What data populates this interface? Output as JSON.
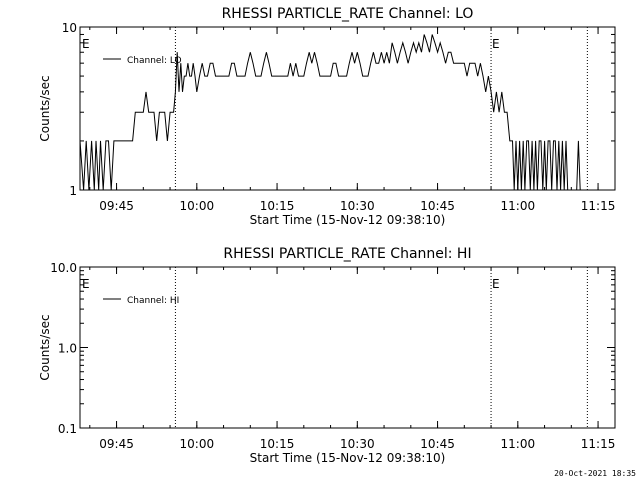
{
  "footer": {
    "timestamp": "20-Oct-2021 18:35"
  },
  "chart_data": [
    {
      "type": "line",
      "title": "RHESSI PARTICLE_RATE Channel: LO",
      "xlabel": "Start Time (15-Nov-12 09:38:10)",
      "ylabel": "Counts/sec",
      "xscale": "time",
      "xlim": [
        "09:38:10",
        "11:18:10"
      ],
      "yscale": "log",
      "ylim": [
        1,
        10
      ],
      "yticks": [
        1,
        10
      ],
      "ytick_labels": [
        "1",
        "10"
      ],
      "xticks": [
        "09:45",
        "10:00",
        "10:15",
        "10:30",
        "10:45",
        "11:00",
        "11:15"
      ],
      "xtick_labels": [
        "09:45",
        "10:00",
        "10:15",
        "10:30",
        "10:45",
        "11:00",
        "11:15"
      ],
      "legend": {
        "position": "top-left",
        "entries": [
          "Channel: LO"
        ]
      },
      "markers": [
        {
          "time": "09:56:00",
          "label": ""
        },
        {
          "time": "10:55:00",
          "label": "E"
        },
        {
          "time": "11:13:00",
          "label": ""
        }
      ],
      "edge_label": "E",
      "series": [
        {
          "name": "Channel: LO",
          "points": [
            [
              "09:38:10",
              2
            ],
            [
              "09:38:50",
              1
            ],
            [
              "09:39:20",
              2
            ],
            [
              "09:39:50",
              1
            ],
            [
              "09:40:20",
              2
            ],
            [
              "09:40:50",
              1
            ],
            [
              "09:41:10",
              2
            ],
            [
              "09:41:40",
              1
            ],
            [
              "09:42:00",
              2
            ],
            [
              "09:42:30",
              1
            ],
            [
              "09:43:00",
              2
            ],
            [
              "09:43:30",
              2
            ],
            [
              "09:44:00",
              1
            ],
            [
              "09:44:30",
              2
            ],
            [
              "09:45:00",
              2
            ],
            [
              "09:48:00",
              2
            ],
            [
              "09:48:30",
              3
            ],
            [
              "09:50:00",
              3
            ],
            [
              "09:50:30",
              4
            ],
            [
              "09:51:00",
              3
            ],
            [
              "09:52:00",
              3
            ],
            [
              "09:52:30",
              2
            ],
            [
              "09:53:00",
              3
            ],
            [
              "09:54:00",
              3
            ],
            [
              "09:54:30",
              2
            ],
            [
              "09:55:00",
              3
            ],
            [
              "09:55:40",
              3
            ],
            [
              "09:56:00",
              4
            ],
            [
              "09:56:20",
              7
            ],
            [
              "09:56:40",
              4
            ],
            [
              "09:57:00",
              6
            ],
            [
              "09:57:20",
              4
            ],
            [
              "09:57:40",
              5
            ],
            [
              "09:58:00",
              5
            ],
            [
              "09:58:20",
              6
            ],
            [
              "09:58:40",
              5
            ],
            [
              "09:59:00",
              5
            ],
            [
              "09:59:20",
              6
            ],
            [
              "09:59:40",
              5
            ],
            [
              "10:00:00",
              4
            ],
            [
              "10:00:30",
              5
            ],
            [
              "10:01:00",
              6
            ],
            [
              "10:01:30",
              5
            ],
            [
              "10:02:00",
              5
            ],
            [
              "10:02:30",
              6
            ],
            [
              "10:03:00",
              6
            ],
            [
              "10:03:30",
              5
            ],
            [
              "10:04:00",
              5
            ],
            [
              "10:06:00",
              5
            ],
            [
              "10:06:30",
              6
            ],
            [
              "10:07:00",
              6
            ],
            [
              "10:07:30",
              5
            ],
            [
              "10:09:00",
              5
            ],
            [
              "10:09:30",
              6
            ],
            [
              "10:10:00",
              7
            ],
            [
              "10:10:30",
              6
            ],
            [
              "10:11:00",
              5
            ],
            [
              "10:12:00",
              5
            ],
            [
              "10:12:30",
              6
            ],
            [
              "10:13:00",
              7
            ],
            [
              "10:13:30",
              6
            ],
            [
              "10:14:00",
              5
            ],
            [
              "10:17:00",
              5
            ],
            [
              "10:17:30",
              6
            ],
            [
              "10:18:00",
              5
            ],
            [
              "10:18:30",
              6
            ],
            [
              "10:19:00",
              5
            ],
            [
              "10:20:00",
              5
            ],
            [
              "10:20:30",
              6
            ],
            [
              "10:21:00",
              7
            ],
            [
              "10:21:30",
              6
            ],
            [
              "10:22:00",
              7
            ],
            [
              "10:22:30",
              6
            ],
            [
              "10:23:00",
              5
            ],
            [
              "10:25:00",
              5
            ],
            [
              "10:25:30",
              6
            ],
            [
              "10:26:00",
              6
            ],
            [
              "10:26:30",
              5
            ],
            [
              "10:28:00",
              5
            ],
            [
              "10:28:30",
              6
            ],
            [
              "10:29:00",
              7
            ],
            [
              "10:29:30",
              6
            ],
            [
              "10:30:00",
              7
            ],
            [
              "10:30:30",
              6
            ],
            [
              "10:31:00",
              5
            ],
            [
              "10:32:00",
              5
            ],
            [
              "10:32:30",
              6
            ],
            [
              "10:33:00",
              7
            ],
            [
              "10:33:30",
              6
            ],
            [
              "10:34:00",
              6
            ],
            [
              "10:34:30",
              7
            ],
            [
              "10:35:00",
              6
            ],
            [
              "10:35:30",
              7
            ],
            [
              "10:36:00",
              6
            ],
            [
              "10:36:30",
              8
            ],
            [
              "10:37:00",
              7
            ],
            [
              "10:37:30",
              6
            ],
            [
              "10:38:00",
              7
            ],
            [
              "10:38:30",
              8
            ],
            [
              "10:39:00",
              7
            ],
            [
              "10:39:30",
              6
            ],
            [
              "10:40:00",
              7
            ],
            [
              "10:40:30",
              8
            ],
            [
              "10:41:00",
              7
            ],
            [
              "10:41:30",
              8
            ],
            [
              "10:42:00",
              7
            ],
            [
              "10:42:30",
              9
            ],
            [
              "10:43:00",
              8
            ],
            [
              "10:43:30",
              7
            ],
            [
              "10:44:00",
              9
            ],
            [
              "10:44:30",
              8
            ],
            [
              "10:45:00",
              7
            ],
            [
              "10:45:30",
              8
            ],
            [
              "10:46:00",
              7
            ],
            [
              "10:46:30",
              6
            ],
            [
              "10:47:00",
              7
            ],
            [
              "10:47:30",
              7
            ],
            [
              "10:48:00",
              6
            ],
            [
              "10:50:00",
              6
            ],
            [
              "10:50:30",
              5
            ],
            [
              "10:51:00",
              6
            ],
            [
              "10:52:00",
              6
            ],
            [
              "10:52:30",
              5
            ],
            [
              "10:53:00",
              6
            ],
            [
              "10:53:30",
              5
            ],
            [
              "10:54:00",
              4
            ],
            [
              "10:54:30",
              5
            ],
            [
              "10:55:00",
              4
            ],
            [
              "10:55:30",
              3
            ],
            [
              "10:56:00",
              4
            ],
            [
              "10:56:30",
              3
            ],
            [
              "10:57:00",
              4
            ],
            [
              "10:57:30",
              3
            ],
            [
              "10:58:00",
              3
            ],
            [
              "10:58:30",
              2
            ],
            [
              "10:59:00",
              2
            ],
            [
              "10:59:20",
              1
            ],
            [
              "10:59:40",
              2
            ],
            [
              "11:00:00",
              1
            ],
            [
              "11:00:20",
              2
            ],
            [
              "11:00:40",
              1
            ],
            [
              "11:01:00",
              2
            ],
            [
              "11:01:20",
              1
            ],
            [
              "11:01:40",
              2
            ],
            [
              "11:02:00",
              2
            ],
            [
              "11:02:20",
              1
            ],
            [
              "11:02:40",
              2
            ],
            [
              "11:03:00",
              1
            ],
            [
              "11:03:20",
              2
            ],
            [
              "11:03:40",
              1
            ],
            [
              "11:04:00",
              2
            ],
            [
              "11:04:20",
              2
            ],
            [
              "11:04:40",
              1
            ],
            [
              "11:05:00",
              2
            ],
            [
              "11:05:20",
              1
            ],
            [
              "11:05:40",
              2
            ],
            [
              "11:06:00",
              2
            ],
            [
              "11:06:20",
              1
            ],
            [
              "11:06:40",
              2
            ],
            [
              "11:07:00",
              2
            ],
            [
              "11:07:20",
              1
            ],
            [
              "11:07:40",
              2
            ],
            [
              "11:08:00",
              1
            ],
            [
              "11:08:20",
              2
            ],
            [
              "11:08:40",
              1
            ],
            [
              "11:09:00",
              2
            ],
            [
              "11:09:20",
              1
            ],
            [
              "11:11:00",
              1
            ],
            [
              "11:11:20",
              2
            ],
            [
              "11:11:40",
              1
            ]
          ]
        }
      ]
    },
    {
      "type": "line",
      "title": "RHESSI PARTICLE_RATE Channel: HI",
      "xlabel": "Start Time (15-Nov-12 09:38:10)",
      "ylabel": "Counts/sec",
      "xscale": "time",
      "xlim": [
        "09:38:10",
        "11:18:10"
      ],
      "yscale": "log",
      "ylim": [
        0.1,
        10
      ],
      "yticks": [
        0.1,
        1,
        10
      ],
      "ytick_labels": [
        "0.1",
        "1.0",
        "10.0"
      ],
      "xticks": [
        "09:45",
        "10:00",
        "10:15",
        "10:30",
        "10:45",
        "11:00",
        "11:15"
      ],
      "xtick_labels": [
        "09:45",
        "10:00",
        "10:15",
        "10:30",
        "10:45",
        "11:00",
        "11:15"
      ],
      "legend": {
        "position": "top-left",
        "entries": [
          "Channel: HI"
        ]
      },
      "markers": [
        {
          "time": "09:56:00",
          "label": ""
        },
        {
          "time": "10:55:00",
          "label": "E"
        },
        {
          "time": "11:13:00",
          "label": ""
        }
      ],
      "edge_label": "E",
      "series": [
        {
          "name": "Channel: HI",
          "points": []
        }
      ]
    }
  ]
}
